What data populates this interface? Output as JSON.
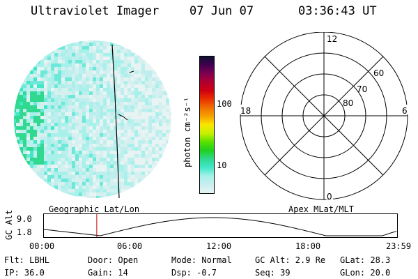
{
  "header": {
    "instrument": "Ultraviolet Imager",
    "date": "07 Jun 07",
    "time": "03:36:43 UT"
  },
  "colorbar": {
    "unit_label": "photon cm⁻²s⁻¹",
    "tick_100": "100",
    "tick_10": "10",
    "colors": [
      "#e8f4f4",
      "#c8eeee",
      "#a8f0ea",
      "#40e8c8",
      "#30d890",
      "#20d020",
      "#58e000",
      "#c8f000",
      "#f8e800",
      "#f8a000",
      "#f07000",
      "#e83000",
      "#d00010",
      "#b00030",
      "#800050",
      "#400050",
      "#101030"
    ]
  },
  "polar": {
    "label_12": "12",
    "label_18": "18",
    "label_6": "6",
    "label_0": "0",
    "label_60": "60",
    "label_70": "70",
    "label_80": "80"
  },
  "coord_labels": {
    "left": "Geographic Lat/Lon",
    "right": "Apex MLat/MLT"
  },
  "orbit": {
    "ylabel": "GC Alt",
    "ymax": "9.0",
    "ymin": "1.8",
    "xticks": [
      "00:00",
      "06:00",
      "12:00",
      "18:00",
      "23:59"
    ],
    "current_time_marker": "03:36"
  },
  "status": {
    "flt": "Flt: LBHL",
    "ip": "IP: 36.0",
    "door": "Door: Open",
    "gain": "Gain: 14",
    "mode": "Mode: Normal",
    "dsp": "Dsp:   -0.7",
    "gc_alt": "GC Alt: 2.9 Re",
    "seq": "Seq: 39",
    "glat": "GLat:  28.3",
    "glon": "GLon:  20.0"
  }
}
